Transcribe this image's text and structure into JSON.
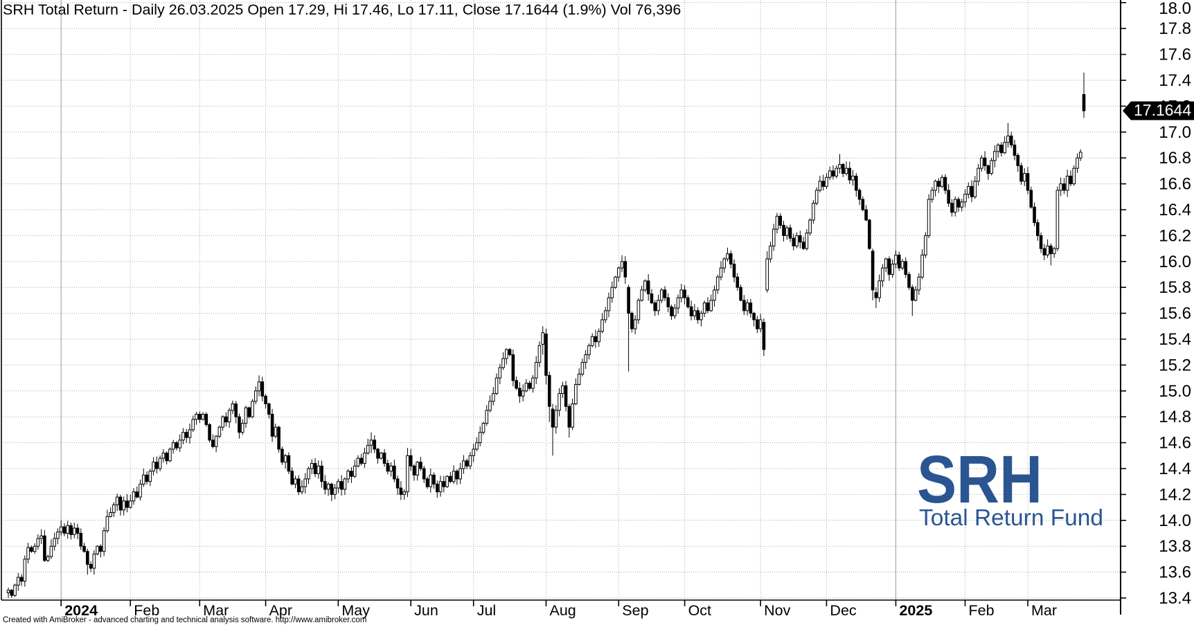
{
  "window": {
    "title_line": "SRH Total Return - Daily 26.03.2025 Open 17.29, Hi 17.46, Lo 17.11, Close 17.1644 (1.9%) Vol 76,396",
    "footer_credit": "Created with AmiBroker - advanced charting and technical analysis software. http://www.amibroker.com"
  },
  "watermark": {
    "line1": "SRH",
    "line2": "Total Return Fund",
    "color": "#2a5591"
  },
  "price_tag": {
    "value": "17.1644",
    "bg": "#000000",
    "fg": "#ffffff"
  },
  "colors": {
    "axis": "#000000",
    "grid": "#aaaaaa",
    "year_line": "#999999",
    "candle_up_fill": "#ffffff",
    "candle_down_fill": "#000000",
    "candle_stroke": "#000000",
    "label": "#000000"
  },
  "chart_data": {
    "type": "candlestick",
    "title": "SRH Total Return - Daily",
    "last_bar": {
      "date": "26.03.2025",
      "open": 17.29,
      "high": 17.46,
      "low": 17.11,
      "close": 17.1644,
      "change_pct": "1.9%",
      "volume": "76,396"
    },
    "ylim": [
      13.39,
      18.03
    ],
    "y_ticks": [
      13.4,
      13.6,
      13.8,
      14.0,
      14.2,
      14.4,
      14.6,
      14.8,
      15.0,
      15.2,
      15.4,
      15.6,
      15.8,
      16.0,
      16.2,
      16.4,
      16.6,
      16.8,
      17.0,
      17.2,
      17.4,
      17.6,
      17.8,
      18.0
    ],
    "grid": true,
    "x_month_labels": [
      {
        "label": "2024",
        "index": 16,
        "bold": true
      },
      {
        "label": "Feb",
        "index": 37,
        "bold": false
      },
      {
        "label": "Mar",
        "index": 58,
        "bold": false
      },
      {
        "label": "Apr",
        "index": 78,
        "bold": false
      },
      {
        "label": "May",
        "index": 100,
        "bold": false
      },
      {
        "label": "Jun",
        "index": 122,
        "bold": false
      },
      {
        "label": "Jul",
        "index": 141,
        "bold": false
      },
      {
        "label": "Aug",
        "index": 163,
        "bold": false
      },
      {
        "label": "Sep",
        "index": 185,
        "bold": false
      },
      {
        "label": "Oct",
        "index": 205,
        "bold": false
      },
      {
        "label": "Nov",
        "index": 228,
        "bold": false
      },
      {
        "label": "Dec",
        "index": 248,
        "bold": false
      },
      {
        "label": "2025",
        "index": 269,
        "bold": true
      },
      {
        "label": "Feb",
        "index": 290,
        "bold": false
      },
      {
        "label": "Mar",
        "index": 309,
        "bold": false
      }
    ],
    "closes": [
      13.46,
      13.42,
      13.5,
      13.56,
      13.53,
      13.7,
      13.79,
      13.76,
      13.8,
      13.86,
      13.88,
      13.69,
      13.72,
      13.8,
      13.86,
      13.91,
      13.95,
      13.9,
      13.96,
      13.89,
      13.94,
      13.9,
      13.8,
      13.76,
      13.66,
      13.63,
      13.74,
      13.8,
      13.76,
      13.92,
      14.03,
      14.06,
      14.12,
      14.18,
      14.08,
      14.15,
      14.1,
      14.15,
      14.22,
      14.18,
      14.28,
      14.35,
      14.3,
      14.38,
      14.45,
      14.4,
      14.48,
      14.52,
      14.46,
      14.55,
      14.6,
      14.56,
      14.62,
      14.68,
      14.64,
      14.7,
      14.78,
      14.82,
      14.78,
      14.82,
      14.74,
      14.62,
      14.57,
      14.65,
      14.72,
      14.8,
      14.76,
      14.85,
      14.9,
      14.8,
      14.68,
      14.75,
      14.87,
      14.8,
      14.92,
      15.0,
      15.07,
      14.96,
      14.9,
      14.82,
      14.65,
      14.72,
      14.55,
      14.45,
      14.5,
      14.38,
      14.28,
      14.32,
      14.22,
      14.26,
      14.32,
      14.4,
      14.44,
      14.36,
      14.42,
      14.3,
      14.24,
      14.28,
      14.2,
      14.25,
      14.3,
      14.24,
      14.32,
      14.38,
      14.34,
      14.42,
      14.48,
      14.44,
      14.52,
      14.58,
      14.62,
      14.55,
      14.48,
      14.52,
      14.44,
      14.38,
      14.42,
      14.32,
      14.25,
      14.2,
      14.22,
      14.5,
      14.42,
      14.35,
      14.45,
      14.4,
      14.32,
      14.26,
      14.35,
      14.28,
      14.22,
      14.3,
      14.26,
      14.34,
      14.3,
      14.38,
      14.32,
      14.4,
      14.46,
      14.42,
      14.5,
      14.55,
      14.6,
      14.68,
      14.75,
      14.85,
      14.92,
      14.98,
      15.1,
      15.18,
      15.25,
      15.32,
      15.28,
      15.08,
      15.02,
      14.96,
      15.0,
      15.06,
      15.02,
      15.1,
      15.22,
      15.35,
      15.45,
      15.12,
      14.88,
      14.72,
      14.85,
      14.98,
      15.04,
      14.88,
      14.72,
      14.9,
      15.05,
      15.13,
      15.22,
      15.28,
      15.35,
      15.42,
      15.38,
      15.46,
      15.55,
      15.62,
      15.72,
      15.8,
      15.88,
      15.95,
      16.0,
      15.88,
      15.6,
      15.48,
      15.55,
      15.7,
      15.78,
      15.85,
      15.75,
      15.68,
      15.62,
      15.7,
      15.78,
      15.72,
      15.65,
      15.58,
      15.64,
      15.72,
      15.78,
      15.72,
      15.65,
      15.58,
      15.62,
      15.55,
      15.6,
      15.68,
      15.62,
      15.7,
      15.78,
      15.88,
      15.95,
      16.02,
      16.06,
      15.98,
      15.88,
      15.8,
      15.7,
      15.62,
      15.68,
      15.6,
      15.55,
      15.48,
      15.55,
      15.32,
      16.02,
      16.12,
      16.25,
      16.35,
      16.28,
      16.2,
      16.26,
      16.18,
      16.12,
      16.2,
      16.15,
      16.1,
      16.22,
      16.32,
      16.45,
      16.55,
      16.62,
      16.58,
      16.65,
      16.7,
      16.66,
      16.72,
      16.75,
      16.68,
      16.72,
      16.63,
      16.66,
      16.55,
      16.48,
      16.4,
      16.32,
      16.1,
      15.78,
      15.72,
      15.85,
      15.95,
      16.02,
      15.9,
      15.98,
      16.05,
      15.95,
      16.0,
      15.9,
      15.8,
      15.7,
      15.78,
      15.88,
      16.05,
      16.2,
      16.48,
      16.55,
      16.62,
      16.58,
      16.65,
      16.55,
      16.45,
      16.38,
      16.48,
      16.42,
      16.46,
      16.52,
      16.58,
      16.5,
      16.62,
      16.72,
      16.8,
      16.74,
      16.68,
      16.78,
      16.85,
      16.9,
      16.84,
      16.92,
      16.97,
      16.9,
      16.82,
      16.74,
      16.62,
      16.68,
      16.55,
      16.42,
      16.3,
      16.2,
      16.1,
      16.05,
      16.12,
      16.06,
      16.1,
      16.55,
      16.6,
      16.55,
      16.66,
      16.6,
      16.72,
      16.8,
      16.8444,
      17.1644
    ],
    "overrides": {
      "0": [
        13.44,
        13.48,
        13.4,
        13.46
      ],
      "1": [
        13.46,
        13.47,
        13.4,
        13.42
      ],
      "24": [
        13.76,
        13.78,
        13.58,
        13.66
      ],
      "76": [
        15.0,
        15.12,
        14.96,
        15.07
      ],
      "77": [
        15.07,
        15.11,
        14.92,
        14.96
      ],
      "110": [
        14.58,
        14.68,
        14.52,
        14.62
      ],
      "121": [
        14.22,
        14.56,
        14.18,
        14.5
      ],
      "162": [
        15.36,
        15.5,
        15.28,
        15.45
      ],
      "163": [
        15.44,
        15.48,
        15.05,
        15.12
      ],
      "164": [
        15.12,
        15.15,
        14.76,
        14.88
      ],
      "165": [
        14.86,
        14.9,
        14.5,
        14.72
      ],
      "170": [
        14.88,
        14.9,
        14.64,
        14.72
      ],
      "188": [
        15.8,
        15.82,
        15.15,
        15.6
      ],
      "229": [
        15.53,
        15.56,
        15.27,
        15.32
      ],
      "230": [
        15.78,
        16.08,
        15.76,
        16.02
      ],
      "252": [
        16.72,
        16.83,
        16.68,
        16.75
      ],
      "262": [
        16.08,
        16.1,
        15.7,
        15.78
      ],
      "263": [
        15.76,
        15.8,
        15.64,
        15.72
      ],
      "274": [
        15.8,
        15.82,
        15.58,
        15.7
      ],
      "279": [
        16.2,
        16.52,
        16.18,
        16.48
      ],
      "303": [
        16.92,
        17.07,
        16.88,
        16.97
      ],
      "316": [
        16.12,
        16.14,
        15.97,
        16.06
      ],
      "318": [
        16.1,
        16.58,
        16.08,
        16.55
      ],
      "326": [
        17.29,
        17.46,
        17.11,
        17.1644
      ]
    }
  }
}
